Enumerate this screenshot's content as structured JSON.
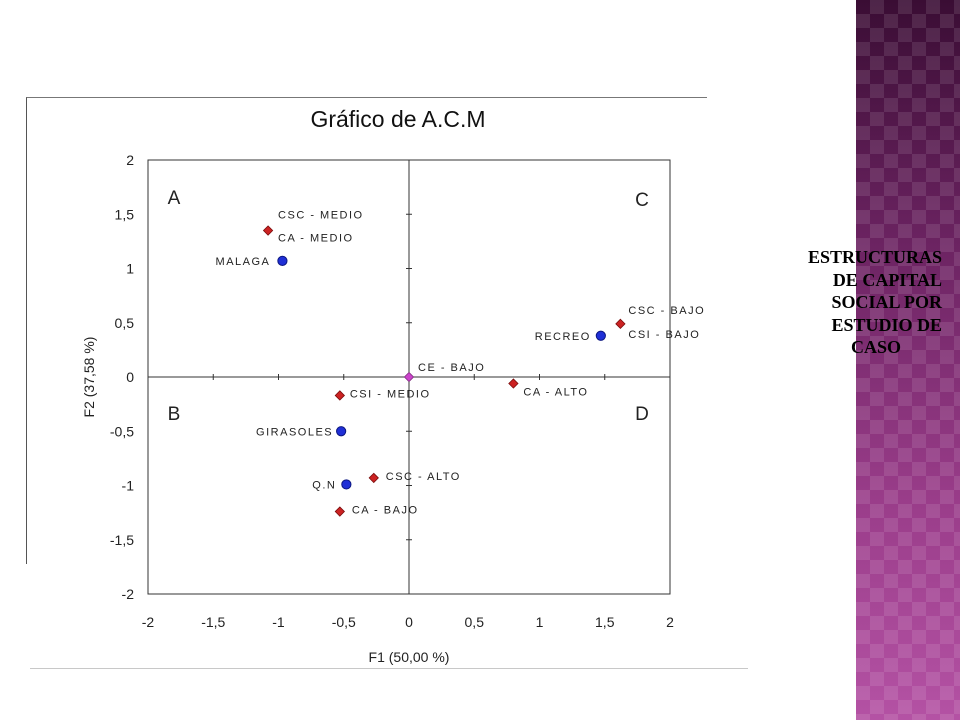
{
  "slide": {
    "side_caption": [
      "ESTRUCTURAS",
      "DE CAPITAL",
      "SOCIAL POR",
      "ESTUDIO DE",
      "CASO"
    ],
    "band_color": "#7a2a6c"
  },
  "chart_data": {
    "type": "scatter",
    "title": "Gráfico de A.C.M",
    "xlabel": "F1 (50,00 %)",
    "ylabel": "F2 (37,58 %)",
    "xlim": [
      -2,
      2
    ],
    "ylim": [
      -2,
      2
    ],
    "x_ticks": [
      "-2",
      "-1,5",
      "-1",
      "-0,5",
      "0",
      "0,5",
      "1",
      "1,5",
      "2"
    ],
    "y_ticks": [
      "2",
      "1,5",
      "1",
      "0,5",
      "0",
      "-0,5",
      "-1",
      "-1,5",
      "-2"
    ],
    "quadrants": [
      "A",
      "B",
      "C",
      "D"
    ],
    "colors": {
      "case": "#1f2fd6",
      "red_variable": "#cc2222",
      "center_variable": "#cc44cc"
    },
    "series": [
      {
        "marker": "circle",
        "points": [
          {
            "label": "MALAGA",
            "x": -0.97,
            "y": 1.07
          },
          {
            "label": "RECREO",
            "x": 1.47,
            "y": 0.38
          },
          {
            "label": "GIRASOLES",
            "x": -0.52,
            "y": -0.5
          },
          {
            "label": "Q.N",
            "x": -0.48,
            "y": -0.99
          }
        ]
      },
      {
        "marker": "diamond",
        "points": [
          {
            "label": "CSC - MEDIO",
            "x": -1.08,
            "y": 1.35
          },
          {
            "label": "CA - MEDIO",
            "x": -1.08,
            "y": 1.35
          },
          {
            "label": "CSC - BAJO",
            "x": 1.62,
            "y": 0.49
          },
          {
            "label": "CSI - BAJO",
            "x": 1.62,
            "y": 0.49
          },
          {
            "label": "CE - BAJO",
            "x": 0.0,
            "y": 0.0
          },
          {
            "label": "CA - ALTO",
            "x": 0.8,
            "y": -0.06
          },
          {
            "label": "CSI - MEDIO",
            "x": -0.53,
            "y": -0.17
          },
          {
            "label": "CSC - ALTO",
            "x": -0.27,
            "y": -0.93
          },
          {
            "label": "CA - BAJO",
            "x": -0.53,
            "y": -1.24
          }
        ]
      }
    ]
  }
}
